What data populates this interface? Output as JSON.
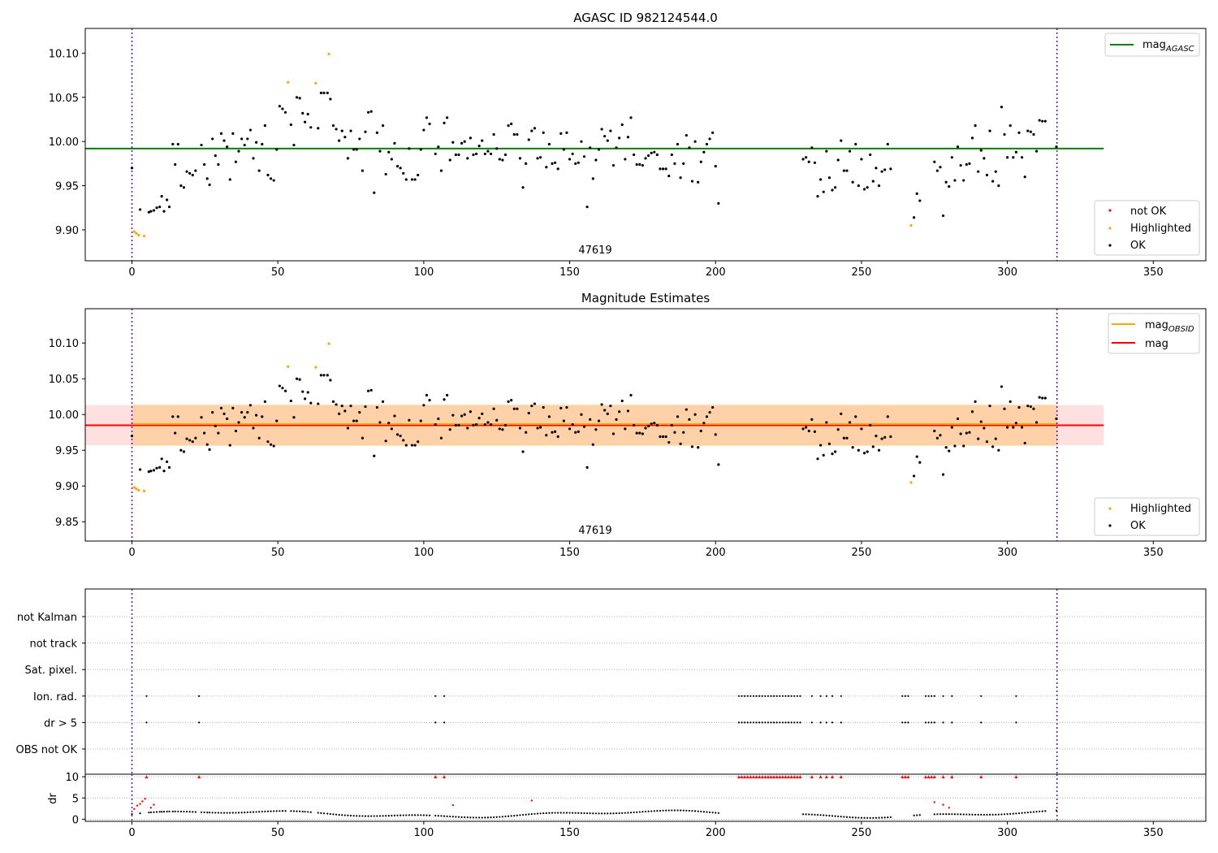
{
  "chart_data": [
    {
      "type": "scatter",
      "title": "AGASC ID 982124544.0",
      "annotation": "47619",
      "xlim": [
        -16,
        368
      ],
      "ylim": [
        9.865,
        10.128
      ],
      "xticks": [
        "0",
        "50",
        "100",
        "150",
        "200",
        "250",
        "300",
        "350"
      ],
      "yticks": [
        "9.90",
        "9.95",
        "10.00",
        "10.05",
        "10.10"
      ],
      "vlines": [
        0,
        317
      ],
      "hline": {
        "value": 9.992,
        "x_range": [
          -16,
          333
        ],
        "color": "#008000",
        "legend_main": "mag",
        "legend_sub": "AGASC"
      },
      "legend": [
        {
          "label": "not OK",
          "color": "#ff0000"
        },
        {
          "label": "Highlighted",
          "color": "#ffa500"
        },
        {
          "label": "OK",
          "color": "#000000"
        }
      ],
      "highlighted": [
        [
          0.8,
          9.898
        ],
        [
          1.5,
          9.896
        ],
        [
          2.3,
          9.894
        ],
        [
          4.2,
          9.893
        ],
        [
          53.5,
          10.067
        ],
        [
          63,
          10.066
        ],
        [
          67.5,
          10.099
        ],
        [
          267,
          9.905
        ]
      ],
      "ok": [
        [
          0,
          9.97
        ],
        [
          2.8,
          9.923
        ],
        [
          5.8,
          9.92
        ],
        [
          6.5,
          9.921
        ],
        [
          7.5,
          9.922
        ],
        [
          8.5,
          9.925
        ],
        [
          9.5,
          9.926
        ],
        [
          10.2,
          9.938
        ],
        [
          11,
          9.921
        ],
        [
          12,
          9.934
        ],
        [
          12.8,
          9.926
        ],
        [
          14,
          9.997
        ],
        [
          14.8,
          9.974
        ],
        [
          15.8,
          9.997
        ],
        [
          16.8,
          9.95
        ],
        [
          17.8,
          9.948
        ],
        [
          18.8,
          9.966
        ],
        [
          19.8,
          9.964
        ],
        [
          20.8,
          9.962
        ],
        [
          21.8,
          9.967
        ],
        [
          23.8,
          9.996
        ],
        [
          24.8,
          9.974
        ],
        [
          25.8,
          9.958
        ],
        [
          26.6,
          9.951
        ],
        [
          27.6,
          10.003
        ],
        [
          28.6,
          9.984
        ],
        [
          29.6,
          9.974
        ],
        [
          30.6,
          10.009
        ],
        [
          31.6,
          10.001
        ],
        [
          32.6,
          9.994
        ],
        [
          33.6,
          9.957
        ],
        [
          34.6,
          10.009
        ],
        [
          35.6,
          9.977
        ],
        [
          36.6,
          9.989
        ],
        [
          37.6,
          10.003
        ],
        [
          38.6,
          9.996
        ],
        [
          39.6,
          10.003
        ],
        [
          40.6,
          10.013
        ],
        [
          41.6,
          9.981
        ],
        [
          42.6,
          9.999
        ],
        [
          43.6,
          9.967
        ],
        [
          44.6,
          9.997
        ],
        [
          45.6,
          10.018
        ],
        [
          46.6,
          9.962
        ],
        [
          47.6,
          9.958
        ],
        [
          48.6,
          9.956
        ],
        [
          49.6,
          9.991
        ],
        [
          50.6,
          10.04
        ],
        [
          51.6,
          10.037
        ],
        [
          52.6,
          10.033
        ],
        [
          54.5,
          10.019
        ],
        [
          55.5,
          9.996
        ],
        [
          56.5,
          10.05
        ],
        [
          57.5,
          10.049
        ],
        [
          58.5,
          10.032
        ],
        [
          59.3,
          10.022
        ],
        [
          60.3,
          10.031
        ],
        [
          61.3,
          10.016
        ],
        [
          63.8,
          10.015
        ],
        [
          64.8,
          10.055
        ],
        [
          65.8,
          10.055
        ],
        [
          67,
          10.055
        ],
        [
          68,
          10.048
        ],
        [
          69,
          10.018
        ],
        [
          70,
          10.014
        ],
        [
          71,
          10.001
        ],
        [
          72,
          10.012
        ],
        [
          73,
          10.005
        ],
        [
          74,
          9.981
        ],
        [
          75,
          10.012
        ],
        [
          76,
          9.991
        ],
        [
          77,
          9.991
        ],
        [
          78,
          10.003
        ],
        [
          79,
          9.967
        ],
        [
          80,
          10.011
        ],
        [
          81,
          10.033
        ],
        [
          82,
          10.034
        ],
        [
          83,
          9.942
        ],
        [
          84,
          10.01
        ],
        [
          85,
          9.989
        ],
        [
          86,
          10.018
        ],
        [
          87,
          9.963
        ],
        [
          88,
          9.988
        ],
        [
          89,
          9.98
        ],
        [
          90,
          9.998
        ],
        [
          91,
          9.972
        ],
        [
          92,
          9.97
        ],
        [
          93,
          9.964
        ],
        [
          94,
          9.957
        ],
        [
          95,
          9.992
        ],
        [
          96,
          9.957
        ],
        [
          97,
          9.957
        ],
        [
          98,
          9.962
        ],
        [
          99,
          9.991
        ],
        [
          100,
          10.013
        ],
        [
          101,
          10.027
        ],
        [
          102,
          10.02
        ],
        [
          104,
          9.986
        ],
        [
          105,
          9.994
        ],
        [
          106,
          9.967
        ],
        [
          107,
          10.021
        ],
        [
          108,
          10.027
        ],
        [
          109,
          9.979
        ],
        [
          110,
          9.999
        ],
        [
          111,
          9.985
        ],
        [
          112,
          9.985
        ],
        [
          113,
          9.998
        ],
        [
          114,
          10.0
        ],
        [
          115,
          9.981
        ],
        [
          116,
          10.004
        ],
        [
          117,
          9.985
        ],
        [
          118,
          9.986
        ],
        [
          119,
          9.995
        ],
        [
          120,
          10.001
        ],
        [
          121,
          9.986
        ],
        [
          122,
          9.989
        ],
        [
          123,
          9.986
        ],
        [
          124,
          10.008
        ],
        [
          125,
          9.992
        ],
        [
          126,
          9.98
        ],
        [
          127,
          9.979
        ],
        [
          128,
          9.985
        ],
        [
          129,
          10.018
        ],
        [
          130,
          10.02
        ],
        [
          131,
          10.008
        ],
        [
          132,
          10.008
        ],
        [
          133,
          9.981
        ],
        [
          134,
          9.948
        ],
        [
          135,
          9.975
        ],
        [
          136,
          10.002
        ],
        [
          137,
          10.012
        ],
        [
          138,
          10.015
        ],
        [
          139,
          9.981
        ],
        [
          140,
          9.982
        ],
        [
          141,
          10.01
        ],
        [
          142,
          9.971
        ],
        [
          143,
          9.997
        ],
        [
          144,
          9.975
        ],
        [
          145,
          9.976
        ],
        [
          146,
          9.969
        ],
        [
          147,
          10.009
        ],
        [
          148,
          9.991
        ],
        [
          149,
          10.01
        ],
        [
          150,
          9.98
        ],
        [
          151,
          9.986
        ],
        [
          152,
          9.975
        ],
        [
          153,
          9.976
        ],
        [
          154,
          10.0
        ],
        [
          155,
          9.983
        ],
        [
          156,
          9.926
        ],
        [
          157,
          9.993
        ],
        [
          158,
          9.958
        ],
        [
          159,
          9.979
        ],
        [
          160,
          9.991
        ],
        [
          161,
          10.014
        ],
        [
          162,
          10.006
        ],
        [
          163,
          10.001
        ],
        [
          164,
          10.012
        ],
        [
          165,
          9.973
        ],
        [
          166,
          9.993
        ],
        [
          167,
          10.004
        ],
        [
          168,
          10.019
        ],
        [
          169,
          9.98
        ],
        [
          170,
          10.005
        ],
        [
          171,
          10.027
        ],
        [
          172,
          9.985
        ],
        [
          173,
          9.974
        ],
        [
          174,
          9.974
        ],
        [
          175,
          9.973
        ],
        [
          176,
          9.981
        ],
        [
          177,
          9.984
        ],
        [
          178,
          9.987
        ],
        [
          179,
          9.988
        ],
        [
          180,
          9.985
        ],
        [
          181,
          9.969
        ],
        [
          182,
          9.969
        ],
        [
          183,
          9.969
        ],
        [
          184,
          9.961
        ],
        [
          185,
          9.985
        ],
        [
          186,
          9.975
        ],
        [
          187,
          9.997
        ],
        [
          188,
          9.959
        ],
        [
          189,
          9.975
        ],
        [
          190,
          10.007
        ],
        [
          191,
          9.993
        ],
        [
          192,
          9.955
        ],
        [
          193,
          10.0
        ],
        [
          194,
          9.954
        ],
        [
          195,
          9.977
        ],
        [
          196,
          9.988
        ],
        [
          197,
          9.997
        ],
        [
          198,
          10.003
        ],
        [
          199,
          10.01
        ],
        [
          200,
          9.972
        ],
        [
          201,
          9.93
        ],
        [
          230,
          9.98
        ],
        [
          231,
          9.982
        ],
        [
          232,
          9.977
        ],
        [
          233,
          9.993
        ],
        [
          234,
          9.976
        ],
        [
          235,
          9.938
        ],
        [
          236,
          9.957
        ],
        [
          237,
          9.943
        ],
        [
          238,
          9.989
        ],
        [
          239,
          9.959
        ],
        [
          240,
          9.945
        ],
        [
          241,
          9.948
        ],
        [
          242,
          9.979
        ],
        [
          243,
          10.001
        ],
        [
          244,
          9.967
        ],
        [
          245,
          9.967
        ],
        [
          246,
          9.989
        ],
        [
          247,
          9.954
        ],
        [
          248,
          9.997
        ],
        [
          249,
          9.95
        ],
        [
          250,
          9.98
        ],
        [
          251,
          9.946
        ],
        [
          252,
          9.948
        ],
        [
          253,
          9.985
        ],
        [
          254,
          9.955
        ],
        [
          255,
          9.97
        ],
        [
          256,
          9.95
        ],
        [
          257,
          9.966
        ],
        [
          258,
          9.968
        ],
        [
          259,
          9.997
        ],
        [
          260,
          9.969
        ],
        [
          268,
          9.914
        ],
        [
          269,
          9.941
        ],
        [
          270,
          9.933
        ],
        [
          275,
          9.977
        ],
        [
          276,
          9.967
        ],
        [
          277,
          9.971
        ],
        [
          278,
          9.916
        ],
        [
          279,
          9.954
        ],
        [
          280,
          9.949
        ],
        [
          281,
          9.982
        ],
        [
          282,
          9.956
        ],
        [
          283,
          9.994
        ],
        [
          284,
          9.973
        ],
        [
          285,
          9.956
        ],
        [
          286,
          9.974
        ],
        [
          287,
          9.975
        ],
        [
          288,
          10.004
        ],
        [
          289,
          10.018
        ],
        [
          290,
          9.966
        ],
        [
          291,
          9.99
        ],
        [
          292,
          9.981
        ],
        [
          293,
          9.962
        ],
        [
          294,
          10.012
        ],
        [
          295,
          9.955
        ],
        [
          296,
          9.966
        ],
        [
          297,
          9.95
        ],
        [
          298,
          10.039
        ],
        [
          299,
          10.008
        ],
        [
          300,
          9.982
        ],
        [
          301,
          10.018
        ],
        [
          302,
          9.982
        ],
        [
          303,
          9.988
        ],
        [
          304,
          10.01
        ],
        [
          305,
          9.982
        ],
        [
          306,
          9.96
        ],
        [
          307,
          10.012
        ],
        [
          308,
          10.011
        ],
        [
          309,
          10.008
        ],
        [
          310,
          9.989
        ],
        [
          311,
          10.024
        ],
        [
          312,
          10.023
        ],
        [
          313,
          10.023
        ],
        [
          316.8,
          9.994
        ]
      ]
    },
    {
      "type": "scatter",
      "title": "Magnitude Estimates",
      "annotation": "47619",
      "xlim": [
        -16,
        368
      ],
      "ylim": [
        9.823,
        10.148
      ],
      "xticks": [
        "0",
        "50",
        "100",
        "150",
        "200",
        "250",
        "300",
        "350"
      ],
      "yticks": [
        "9.85",
        "9.90",
        "9.95",
        "10.00",
        "10.05",
        "10.10"
      ],
      "vlines": [
        0,
        317
      ],
      "mag_line": {
        "value": 9.985,
        "x_range": [
          -16,
          333
        ],
        "band": [
          9.957,
          10.013
        ],
        "color": "#ff0000",
        "legend": "mag"
      },
      "mag_obsid": {
        "value": 9.985,
        "x_range": [
          0,
          317
        ],
        "band": [
          9.956,
          10.014
        ],
        "color": "#ffa500",
        "legend_main": "mag",
        "legend_sub": "OBSID"
      },
      "legend": [
        {
          "label": "Highlighted",
          "color": "#ffa500"
        },
        {
          "label": "OK",
          "color": "#000000"
        }
      ]
    },
    {
      "type": "scatter",
      "xlim": [
        -16,
        368
      ],
      "xticks": [
        "0",
        "50",
        "100",
        "150",
        "200",
        "250",
        "300",
        "350"
      ],
      "flag_rows": [
        "not Kalman",
        "not track",
        "Sat. pixel.",
        "Ion. rad.",
        "dr > 5",
        "OBS not OK"
      ],
      "flag_points": [
        5,
        23,
        104,
        107,
        208,
        209,
        210,
        211,
        212,
        213,
        214,
        215,
        216,
        217,
        218,
        219,
        220,
        221,
        222,
        223,
        224,
        225,
        226,
        227,
        228,
        229,
        233,
        236,
        238,
        240,
        243,
        264,
        265,
        266,
        272,
        273,
        274,
        275,
        278,
        281,
        291,
        303
      ],
      "vlines": [
        0,
        317
      ],
      "dr_ylabel": "dr",
      "dr_yticks": [
        "0",
        "5",
        "10"
      ],
      "dr_ylim": [
        -0.5,
        10.6
      ],
      "dr_red_small": [
        [
          0.8,
          2.4
        ],
        [
          1.8,
          3.2
        ],
        [
          2.8,
          3.6
        ],
        [
          3.6,
          4.2
        ],
        [
          4.5,
          4.8
        ],
        [
          6.5,
          2.7
        ],
        [
          7.5,
          3.4
        ],
        [
          110,
          3.3
        ],
        [
          137,
          4.4
        ],
        [
          275,
          4.0
        ],
        [
          278,
          3.4
        ],
        [
          280,
          2.7
        ]
      ],
      "dr_red_capped": [
        5,
        23,
        104,
        107,
        208,
        209,
        210,
        211,
        212,
        213,
        214,
        215,
        216,
        217,
        218,
        219,
        220,
        221,
        222,
        223,
        224,
        225,
        226,
        227,
        228,
        229,
        233,
        236,
        238,
        240,
        243,
        264,
        265,
        266,
        272,
        273,
        274,
        275,
        278,
        281,
        291,
        303
      ]
    }
  ]
}
